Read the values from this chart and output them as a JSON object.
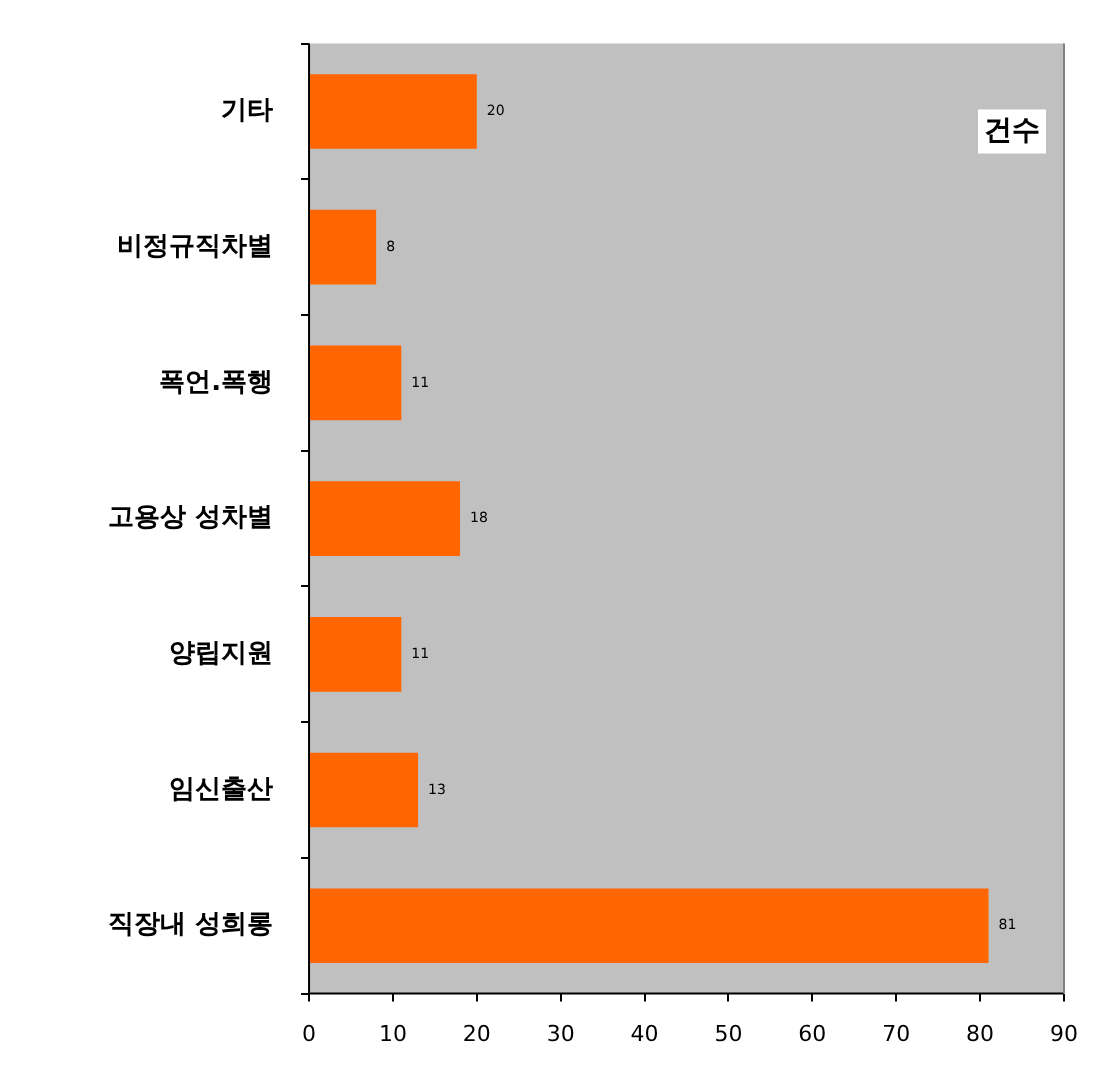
{
  "chart_data": {
    "type": "bar",
    "orientation": "horizontal",
    "categories": [
      "기타",
      "비정규직차별",
      "폭언.폭행",
      "고용상 성차별",
      "양립지원",
      "임신출산",
      "직장내 성희롱"
    ],
    "values": [
      20,
      8,
      11,
      18,
      11,
      13,
      81
    ],
    "color": "#ff6600",
    "xlim": [
      0,
      90
    ],
    "xticks": [
      0,
      10,
      20,
      30,
      40,
      50,
      60,
      70,
      80,
      90
    ],
    "grid": false,
    "legend": false,
    "data_labels": true,
    "annotations": [
      "건수"
    ]
  }
}
